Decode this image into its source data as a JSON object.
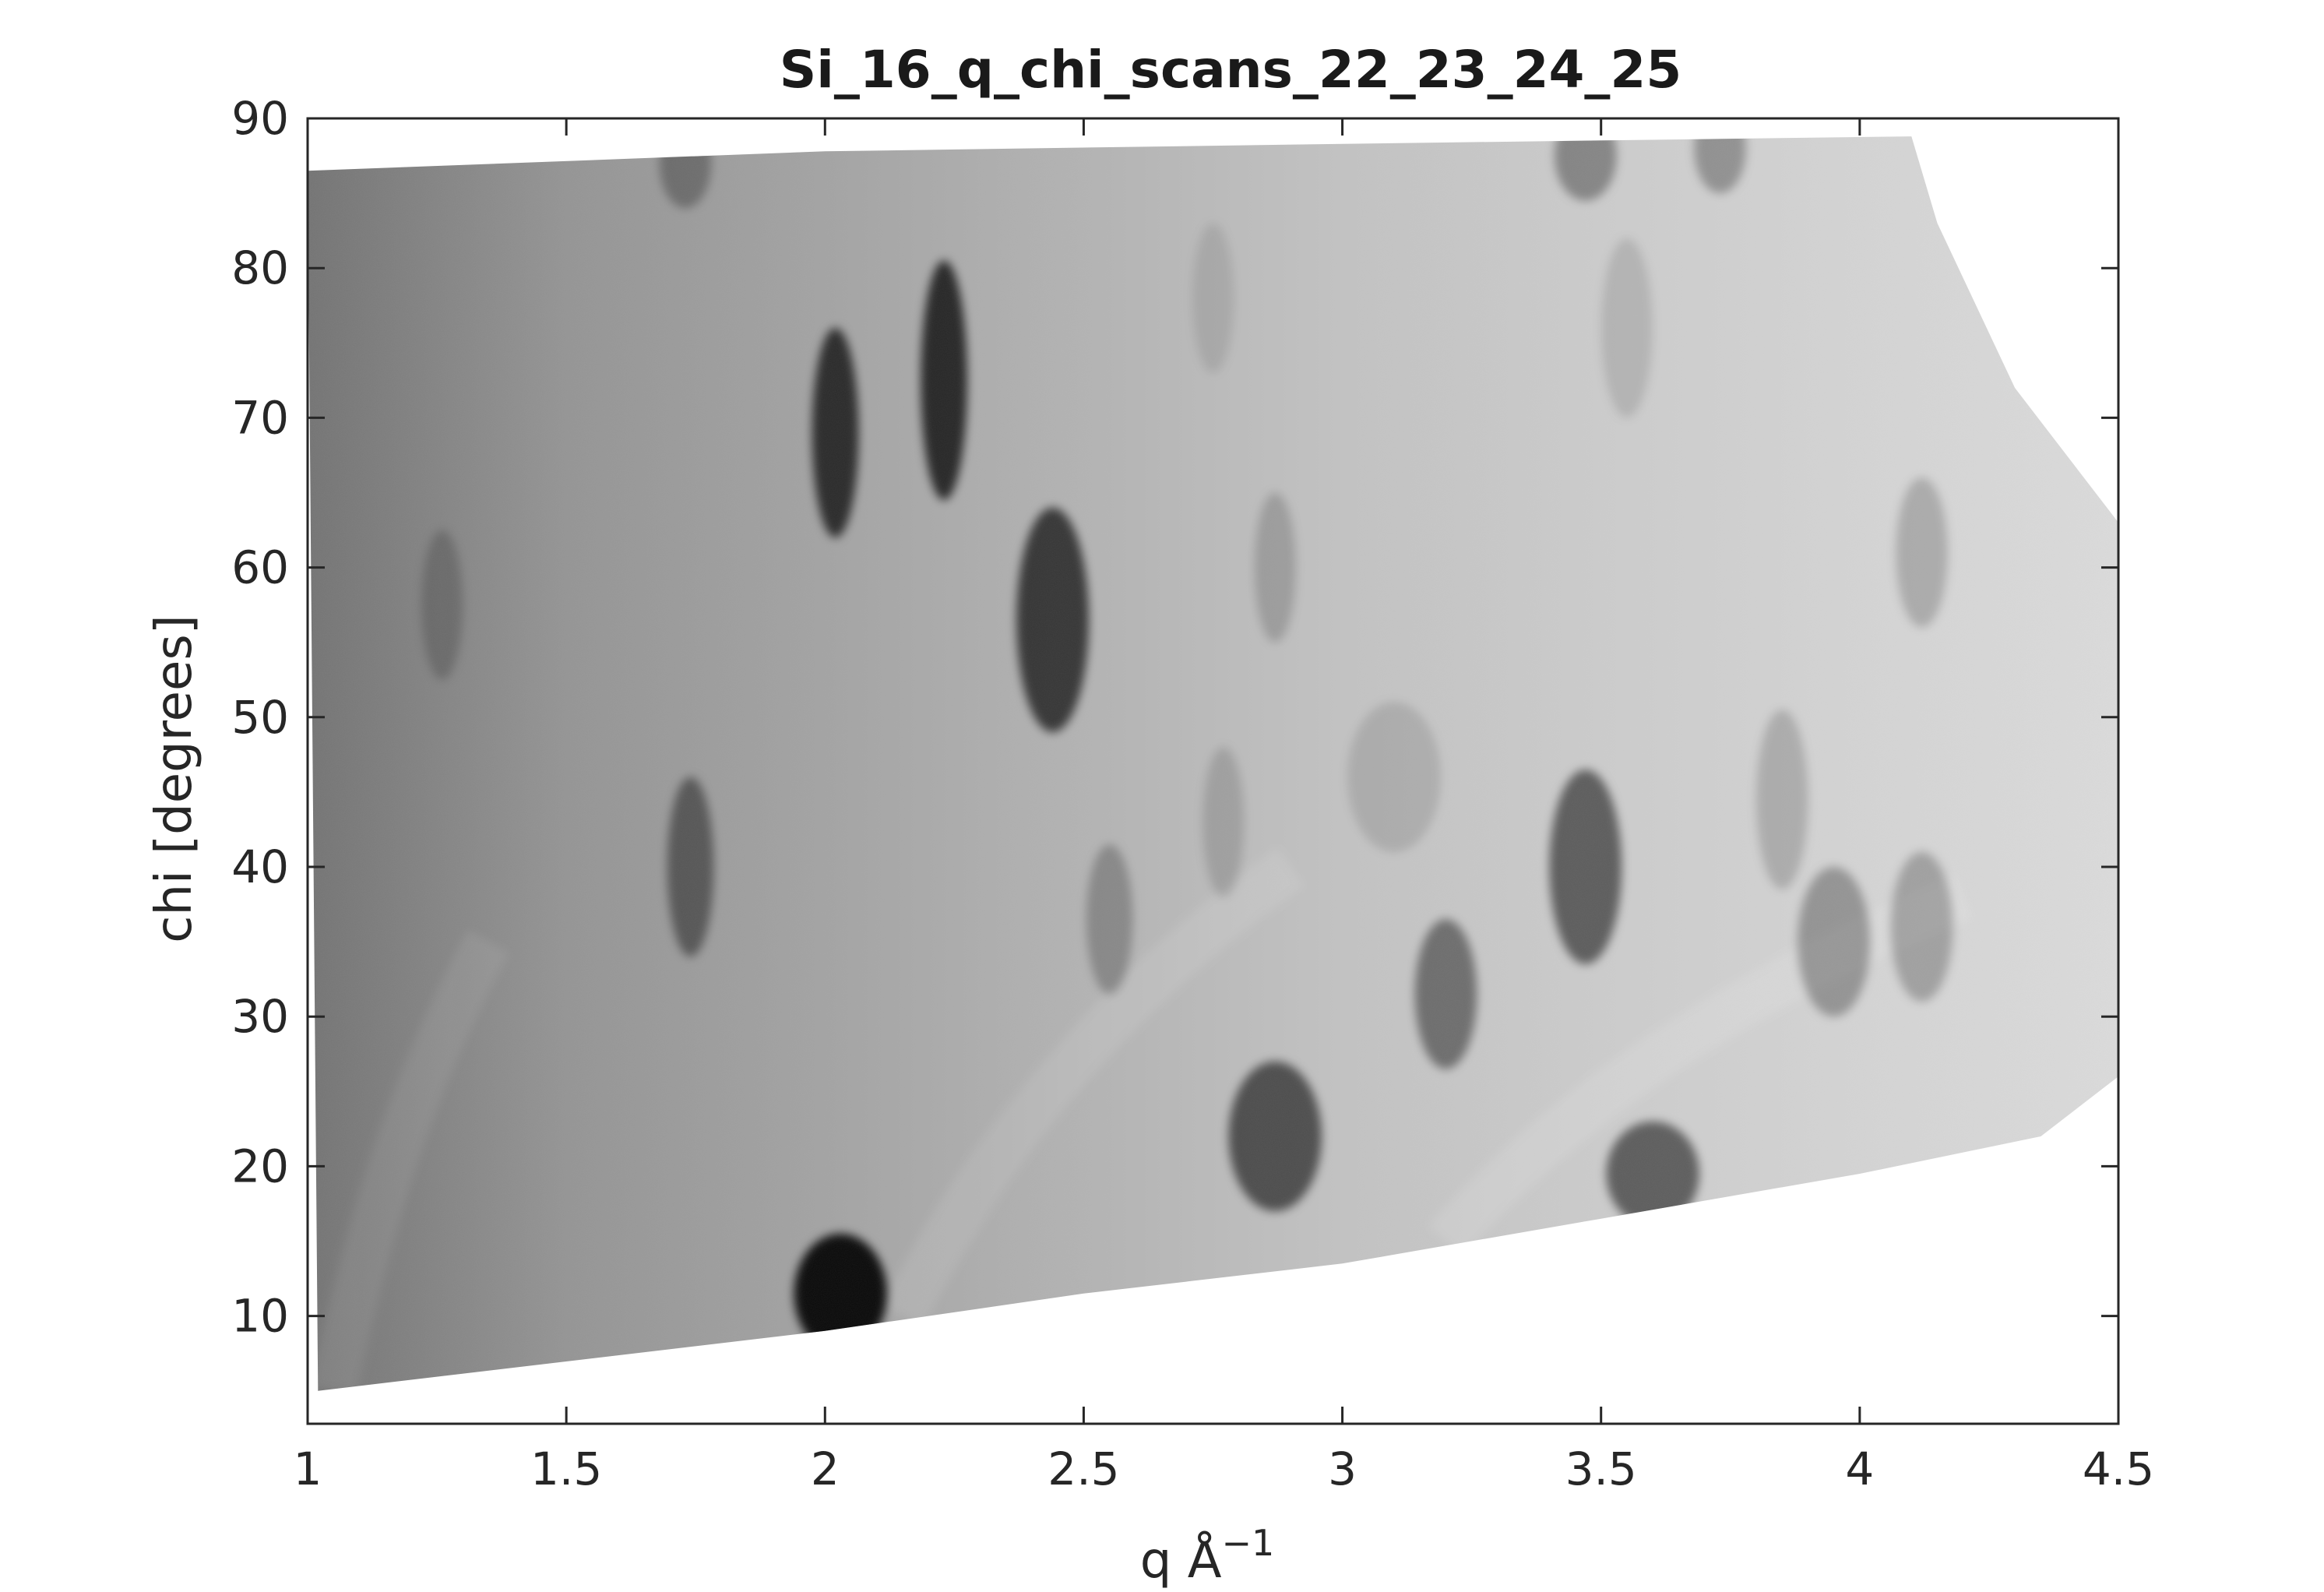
{
  "chart_data": {
    "type": "heatmap",
    "title": "Si_16_q_chi_scans_22_23_24_25",
    "xlabel": "q Å",
    "xlabel_exponent": "−1",
    "ylabel": "chi [degrees]",
    "xlim": [
      1,
      4.5
    ],
    "ylim": [
      2.8,
      90
    ],
    "x_ticks": [
      1,
      1.5,
      2,
      2.5,
      3,
      3.5,
      4,
      4.5
    ],
    "x_tick_labels": [
      "1",
      "1.5",
      "2",
      "2.5",
      "3",
      "3.5",
      "4",
      "4.5"
    ],
    "y_ticks": [
      10,
      20,
      30,
      40,
      50,
      60,
      70,
      80,
      90
    ],
    "y_tick_labels": [
      "10",
      "20",
      "30",
      "40",
      "50",
      "60",
      "70",
      "80",
      "90"
    ],
    "grid": false,
    "colormap": "gray",
    "coverage": {
      "upper_edge": [
        [
          1.0,
          86.5
        ],
        [
          2.0,
          87.8
        ],
        [
          3.0,
          88.3
        ],
        [
          4.1,
          88.8
        ],
        [
          4.15,
          83.0
        ],
        [
          4.3,
          72.0
        ],
        [
          4.5,
          63.0
        ]
      ],
      "lower_edge": [
        [
          1.02,
          5.0
        ],
        [
          2.0,
          9.0
        ],
        [
          2.5,
          11.5
        ],
        [
          3.0,
          13.5
        ],
        [
          3.5,
          16.5
        ],
        [
          4.0,
          19.5
        ],
        [
          4.35,
          22.0
        ],
        [
          4.5,
          26.0
        ]
      ]
    },
    "background_gradient": [
      {
        "q": 1.0,
        "level": 0.45
      },
      {
        "q": 1.5,
        "level": 0.58
      },
      {
        "q": 2.0,
        "level": 0.64
      },
      {
        "q": 2.5,
        "level": 0.7
      },
      {
        "q": 3.0,
        "level": 0.76
      },
      {
        "q": 3.5,
        "level": 0.8
      },
      {
        "q": 4.0,
        "level": 0.83
      },
      {
        "q": 4.5,
        "level": 0.86
      }
    ],
    "peaks": [
      {
        "q": 2.03,
        "chi": 11.5,
        "dq": 0.09,
        "dchi": 4.0,
        "intensity": 0.95
      },
      {
        "q": 2.02,
        "chi": 69.0,
        "dq": 0.045,
        "dchi": 7.0,
        "intensity": 0.75
      },
      {
        "q": 2.23,
        "chi": 72.5,
        "dq": 0.045,
        "dchi": 8.0,
        "intensity": 0.78
      },
      {
        "q": 2.44,
        "chi": 56.5,
        "dq": 0.07,
        "dchi": 7.5,
        "intensity": 0.7
      },
      {
        "q": 1.74,
        "chi": 40.0,
        "dq": 0.045,
        "dchi": 6.0,
        "intensity": 0.45
      },
      {
        "q": 1.73,
        "chi": 87.0,
        "dq": 0.05,
        "dchi": 3.0,
        "intensity": 0.3
      },
      {
        "q": 1.26,
        "chi": 57.5,
        "dq": 0.04,
        "dchi": 5.0,
        "intensity": 0.2
      },
      {
        "q": 2.87,
        "chi": 22.0,
        "dq": 0.09,
        "dchi": 5.0,
        "intensity": 0.6
      },
      {
        "q": 3.2,
        "chi": 31.5,
        "dq": 0.06,
        "dchi": 5.0,
        "intensity": 0.45
      },
      {
        "q": 3.47,
        "chi": 40.0,
        "dq": 0.07,
        "dchi": 6.5,
        "intensity": 0.55
      },
      {
        "q": 3.6,
        "chi": 19.5,
        "dq": 0.09,
        "dchi": 3.5,
        "intensity": 0.55
      },
      {
        "q": 3.47,
        "chi": 87.5,
        "dq": 0.06,
        "dchi": 3.0,
        "intensity": 0.35
      },
      {
        "q": 3.73,
        "chi": 88.0,
        "dq": 0.05,
        "dchi": 3.0,
        "intensity": 0.3
      },
      {
        "q": 2.55,
        "chi": 36.5,
        "dq": 0.045,
        "dchi": 5.0,
        "intensity": 0.25
      },
      {
        "q": 2.87,
        "chi": 60.0,
        "dq": 0.04,
        "dchi": 5.0,
        "intensity": 0.18
      },
      {
        "q": 2.77,
        "chi": 43.0,
        "dq": 0.04,
        "dchi": 5.0,
        "intensity": 0.15
      },
      {
        "q": 3.95,
        "chi": 35.0,
        "dq": 0.07,
        "dchi": 5.0,
        "intensity": 0.3
      },
      {
        "q": 4.12,
        "chi": 36.0,
        "dq": 0.06,
        "dchi": 5.0,
        "intensity": 0.25
      },
      {
        "q": 4.12,
        "chi": 61.0,
        "dq": 0.05,
        "dchi": 5.0,
        "intensity": 0.2
      },
      {
        "q": 3.85,
        "chi": 44.5,
        "dq": 0.05,
        "dchi": 6.0,
        "intensity": 0.18
      },
      {
        "q": 3.55,
        "chi": 76.0,
        "dq": 0.05,
        "dchi": 6.0,
        "intensity": 0.12
      },
      {
        "q": 3.1,
        "chi": 46.0,
        "dq": 0.09,
        "dchi": 5.0,
        "intensity": 0.12
      },
      {
        "q": 2.75,
        "chi": 78.0,
        "dq": 0.04,
        "dchi": 5.0,
        "intensity": 0.1
      }
    ],
    "arcs": [
      {
        "q_at_bottom": 2.15,
        "q_at_top": 2.9,
        "chi_bottom": 10,
        "chi_top": 40,
        "intensity": 0.1
      },
      {
        "q_at_bottom": 3.2,
        "q_at_top": 4.2,
        "chi_bottom": 15,
        "chi_top": 38,
        "intensity": 0.12
      },
      {
        "q_at_bottom": 1.05,
        "q_at_top": 1.35,
        "chi_bottom": 5,
        "chi_top": 35,
        "intensity": 0.08
      }
    ]
  }
}
